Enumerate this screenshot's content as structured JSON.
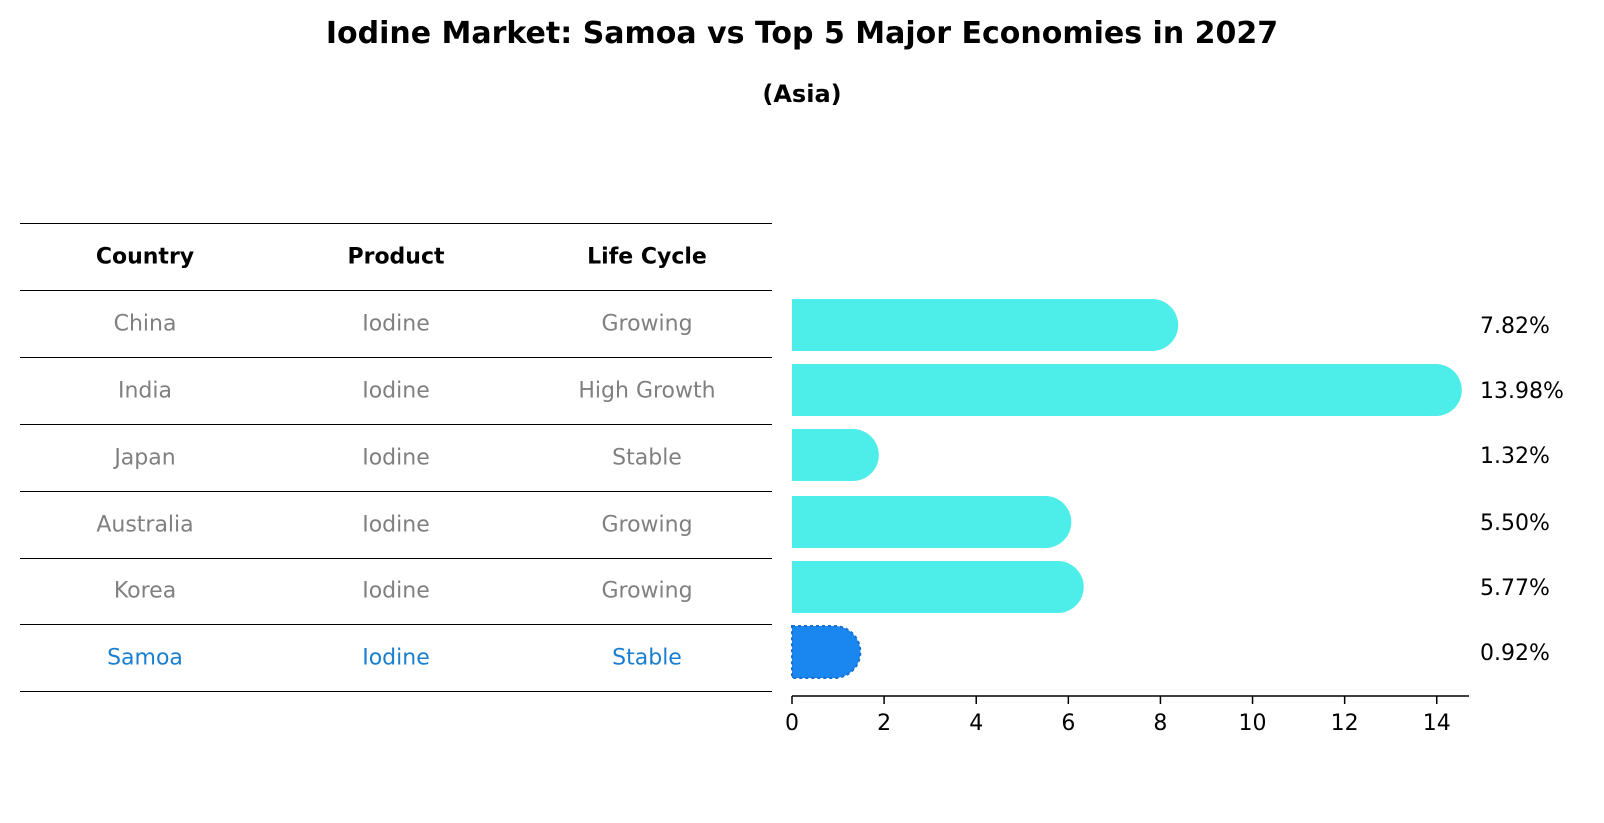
{
  "title": "Iodine Market: Samoa vs Top 5 Major Economies in 2027",
  "subtitle": "(Asia)",
  "colors": {
    "bar": "#4dede9",
    "highlight": "#1a86f0",
    "row_text": "#808080",
    "highlight_text": "#1a7fd0"
  },
  "table": {
    "headers": [
      "Country",
      "Product",
      "Life Cycle"
    ],
    "rows": [
      [
        "China",
        "Iodine",
        "Growing"
      ],
      [
        "India",
        "Iodine",
        "High Growth"
      ],
      [
        "Japan",
        "Iodine",
        "Stable"
      ],
      [
        "Australia",
        "Iodine",
        "Growing"
      ],
      [
        "Korea",
        "Iodine",
        "Growing"
      ],
      [
        "Samoa",
        "Iodine",
        "Stable"
      ]
    ],
    "highlight_row": "Samoa"
  },
  "chart_data": {
    "type": "bar",
    "orientation": "horizontal",
    "categories": [
      "China",
      "India",
      "Japan",
      "Australia",
      "Korea",
      "Samoa"
    ],
    "values": [
      7.82,
      13.98,
      1.32,
      5.5,
      5.77,
      0.92
    ],
    "value_labels": [
      "7.82%",
      "13.98%",
      "1.32%",
      "5.50%",
      "5.77%",
      "0.92%"
    ],
    "highlight": "Samoa",
    "xlim": [
      0,
      14.7
    ],
    "xticks": [
      0,
      2,
      4,
      6,
      8,
      10,
      12,
      14
    ],
    "grid": false,
    "legend": "none"
  }
}
